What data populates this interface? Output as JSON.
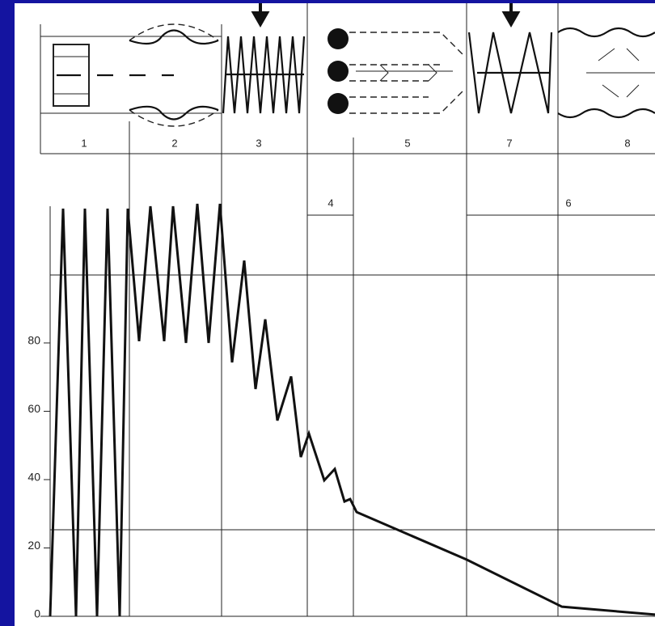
{
  "chart_data": {
    "type": "line",
    "x": [
      0,
      1.6,
      3.2,
      4.3,
      5.8,
      7.1,
      8.6,
      9.6,
      11.0,
      12.4,
      14.1,
      15.2,
      16.8,
      18.2,
      19.6,
      21.0,
      22.5,
      24.0,
      25.4,
      26.6,
      28.1,
      29.8,
      31.0,
      32.0,
      33.9,
      35.2,
      36.4,
      37.1,
      37.9,
      51.5,
      63.3,
      74.8
    ],
    "series": [
      {
        "color": "#111111",
        "values": [
          0,
          119.3,
          0,
          119.3,
          0,
          119.3,
          0,
          119.3,
          80.5,
          120,
          80.5,
          120,
          80,
          120.7,
          80,
          120.7,
          74.3,
          104.1,
          66.5,
          86.9,
          57.3,
          70.2,
          46.6,
          53.5,
          39.8,
          43.1,
          33.6,
          34.3,
          30.5,
          16.6,
          2.8,
          0.5
        ]
      }
    ],
    "xlim": [
      0,
      75
    ],
    "ylim": [
      0,
      120
    ],
    "yticks": [
      0,
      20,
      40,
      60,
      80
    ],
    "stages": [
      "1",
      "2",
      "3",
      "4",
      "5",
      "6",
      "7",
      "8"
    ]
  }
}
